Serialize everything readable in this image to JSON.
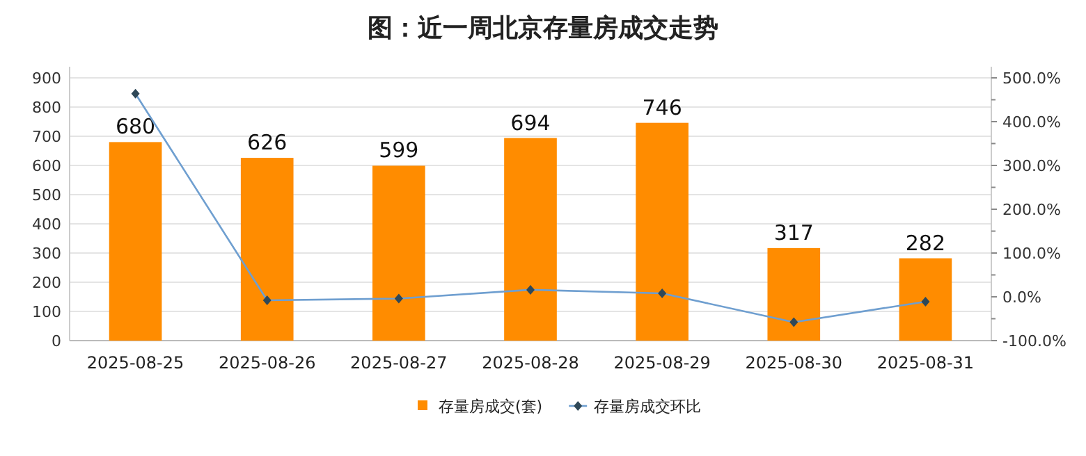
{
  "chart_data": {
    "type": "bar",
    "title": "图：近一周北京存量房成交走势",
    "categories": [
      "2025-08-25",
      "2025-08-26",
      "2025-08-27",
      "2025-08-28",
      "2025-08-29",
      "2025-08-30",
      "2025-08-31"
    ],
    "series": [
      {
        "name": "存量房成交(套)",
        "color": "#ff8c00",
        "values": [
          680,
          626,
          599,
          694,
          746,
          317,
          282
        ],
        "value_labels": [
          "680",
          "626",
          "599",
          "694",
          "746",
          "317",
          "282"
        ]
      },
      {
        "name": "存量房成交环比",
        "type": "line",
        "axis": "y2",
        "color": "#6f9fd0",
        "marker": "diamond",
        "values": [
          464,
          -8,
          -4,
          16,
          8,
          -58,
          -11
        ]
      }
    ],
    "ylim": [
      0,
      900
    ],
    "yticks": [
      0,
      100,
      200,
      300,
      400,
      500,
      600,
      700,
      800,
      900
    ],
    "y2lim": [
      -100,
      500
    ],
    "y2ticks": [
      {
        "value": -100,
        "label": "-100.0%"
      },
      {
        "value": 0,
        "label": "0.0%"
      },
      {
        "value": 100,
        "label": "100.0%"
      },
      {
        "value": 200,
        "label": "200.0%"
      },
      {
        "value": 300,
        "label": "300.0%"
      },
      {
        "value": 400,
        "label": "400.0%"
      },
      {
        "value": 500,
        "label": "500.0%"
      }
    ],
    "grid": "y",
    "legend": "bottom"
  }
}
